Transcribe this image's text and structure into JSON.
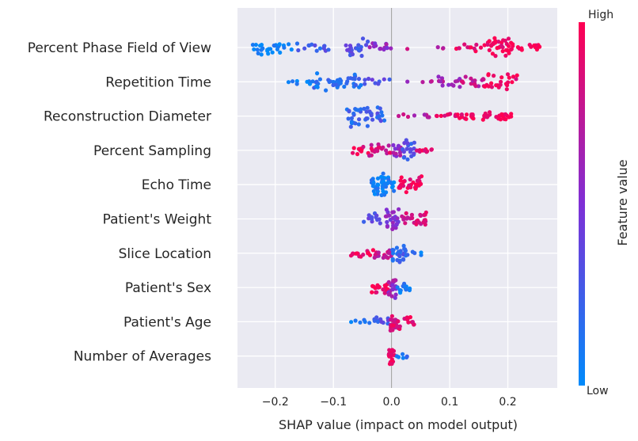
{
  "chart_data": {
    "type": "scatter",
    "subtype": "shap-beeswarm-summary",
    "xlabel": "SHAP value (impact on model output)",
    "xlim": [
      -0.265,
      0.285
    ],
    "xticks": [
      -0.2,
      -0.1,
      0.0,
      0.1,
      0.2
    ],
    "xtick_labels": [
      "−0.2",
      "−0.1",
      "0.0",
      "0.1",
      "0.2"
    ],
    "grid": true,
    "colorbar": {
      "label": "Feature value",
      "high_label": "High",
      "low_label": "Low",
      "low_color": "#008bfb",
      "mid_color": "#7f2fd6",
      "high_color": "#ff0052"
    },
    "colors": {
      "plot_background": "#eaeaf2",
      "grid": "#ffffff",
      "zero_line": "#999999"
    },
    "features": [
      {
        "name": "Percent Phase Field of View",
        "clusters": [
          {
            "range": [
              -0.245,
              -0.17
            ],
            "value": 0.02,
            "n": 28,
            "width": 0.75
          },
          {
            "range": [
              -0.17,
              -0.09
            ],
            "value": 0.25,
            "n": 14,
            "width": 0.45
          },
          {
            "range": [
              -0.08,
              -0.04
            ],
            "value": 0.3,
            "n": 22,
            "width": 0.9
          },
          {
            "range": [
              -0.04,
              0.0
            ],
            "value": 0.55,
            "n": 14,
            "width": 0.5
          },
          {
            "range": [
              0.02,
              0.09
            ],
            "value": 0.8,
            "n": 4,
            "width": 0.15
          },
          {
            "range": [
              0.11,
              0.165
            ],
            "value": 0.95,
            "n": 12,
            "width": 0.4
          },
          {
            "range": [
              0.165,
              0.21
            ],
            "value": 0.97,
            "n": 36,
            "width": 1.0
          },
          {
            "range": [
              0.21,
              0.26
            ],
            "value": 0.98,
            "n": 14,
            "width": 0.35
          }
        ]
      },
      {
        "name": "Repetition Time",
        "clusters": [
          {
            "range": [
              -0.185,
              -0.14
            ],
            "value": 0.05,
            "n": 7,
            "width": 0.2
          },
          {
            "range": [
              -0.14,
              -0.09
            ],
            "value": 0.15,
            "n": 22,
            "width": 0.85
          },
          {
            "range": [
              -0.09,
              -0.04
            ],
            "value": 0.2,
            "n": 22,
            "width": 0.7
          },
          {
            "range": [
              -0.04,
              0.0
            ],
            "value": 0.35,
            "n": 8,
            "width": 0.3
          },
          {
            "range": [
              0.02,
              0.07
            ],
            "value": 0.7,
            "n": 4,
            "width": 0.15
          },
          {
            "range": [
              0.08,
              0.12
            ],
            "value": 0.65,
            "n": 14,
            "width": 0.6
          },
          {
            "range": [
              0.12,
              0.16
            ],
            "value": 0.75,
            "n": 16,
            "width": 0.65
          },
          {
            "range": [
              0.16,
              0.22
            ],
            "value": 0.95,
            "n": 24,
            "width": 0.85
          }
        ]
      },
      {
        "name": "Reconstruction Diameter",
        "clusters": [
          {
            "range": [
              -0.08,
              -0.04
            ],
            "value": 0.2,
            "n": 26,
            "width": 1.0
          },
          {
            "range": [
              -0.04,
              -0.01
            ],
            "value": 0.25,
            "n": 16,
            "width": 0.85
          },
          {
            "range": [
              0.01,
              0.07
            ],
            "value": 0.75,
            "n": 8,
            "width": 0.15
          },
          {
            "range": [
              0.075,
              0.13
            ],
            "value": 0.95,
            "n": 18,
            "width": 0.35
          },
          {
            "range": [
              0.13,
              0.21
            ],
            "value": 0.97,
            "n": 30,
            "width": 0.45
          }
        ]
      },
      {
        "name": "Percent Sampling",
        "clusters": [
          {
            "range": [
              -0.07,
              -0.04
            ],
            "value": 0.95,
            "n": 10,
            "width": 0.45
          },
          {
            "range": [
              -0.04,
              0.0
            ],
            "value": 0.85,
            "n": 22,
            "width": 0.7
          },
          {
            "range": [
              0.0,
              0.018
            ],
            "value": 0.6,
            "n": 14,
            "width": 0.6
          },
          {
            "range": [
              0.018,
              0.04
            ],
            "value": 0.3,
            "n": 20,
            "width": 1.0
          },
          {
            "range": [
              0.04,
              0.07
            ],
            "value": 0.96,
            "n": 10,
            "width": 0.35
          }
        ]
      },
      {
        "name": "Echo Time",
        "clusters": [
          {
            "range": [
              -0.035,
              0.005
            ],
            "value": 0.05,
            "n": 46,
            "width": 1.0
          },
          {
            "range": [
              0.01,
              0.052
            ],
            "value": 0.96,
            "n": 34,
            "width": 0.85
          }
        ]
      },
      {
        "name": "Patient's Weight",
        "clusters": [
          {
            "range": [
              -0.05,
              -0.01
            ],
            "value": 0.3,
            "n": 14,
            "width": 0.5
          },
          {
            "range": [
              -0.01,
              0.015
            ],
            "value": 0.5,
            "n": 24,
            "width": 1.0
          },
          {
            "range": [
              0.015,
              0.06
            ],
            "value": 0.85,
            "n": 26,
            "width": 0.75
          }
        ]
      },
      {
        "name": "Slice Location",
        "clusters": [
          {
            "range": [
              -0.07,
              -0.03
            ],
            "value": 0.95,
            "n": 16,
            "width": 0.35
          },
          {
            "range": [
              -0.03,
              0.0
            ],
            "value": 0.75,
            "n": 20,
            "width": 0.5
          },
          {
            "range": [
              0.0,
              0.025
            ],
            "value": 0.2,
            "n": 26,
            "width": 1.0
          },
          {
            "range": [
              0.025,
              0.055
            ],
            "value": 0.1,
            "n": 6,
            "width": 0.2
          }
        ]
      },
      {
        "name": "Patient's Sex",
        "clusters": [
          {
            "range": [
              -0.035,
              -0.005
            ],
            "value": 0.97,
            "n": 18,
            "width": 0.6
          },
          {
            "range": [
              -0.005,
              0.008
            ],
            "value": 0.6,
            "n": 22,
            "width": 1.0
          },
          {
            "range": [
              0.008,
              0.035
            ],
            "value": 0.05,
            "n": 14,
            "width": 0.5
          }
        ]
      },
      {
        "name": "Patient's Age",
        "clusters": [
          {
            "range": [
              -0.07,
              -0.03
            ],
            "value": 0.1,
            "n": 6,
            "width": 0.25
          },
          {
            "range": [
              -0.03,
              -0.005
            ],
            "value": 0.3,
            "n": 14,
            "width": 0.7
          },
          {
            "range": [
              -0.005,
              0.015
            ],
            "value": 0.85,
            "n": 26,
            "width": 1.0
          },
          {
            "range": [
              0.015,
              0.04
            ],
            "value": 0.9,
            "n": 10,
            "width": 0.45
          }
        ]
      },
      {
        "name": "Number of Averages",
        "clusters": [
          {
            "range": [
              -0.005,
              0.006
            ],
            "value": 0.97,
            "n": 22,
            "width": 0.9
          },
          {
            "range": [
              0.006,
              0.03
            ],
            "value": 0.1,
            "n": 6,
            "width": 0.2
          }
        ]
      }
    ]
  }
}
